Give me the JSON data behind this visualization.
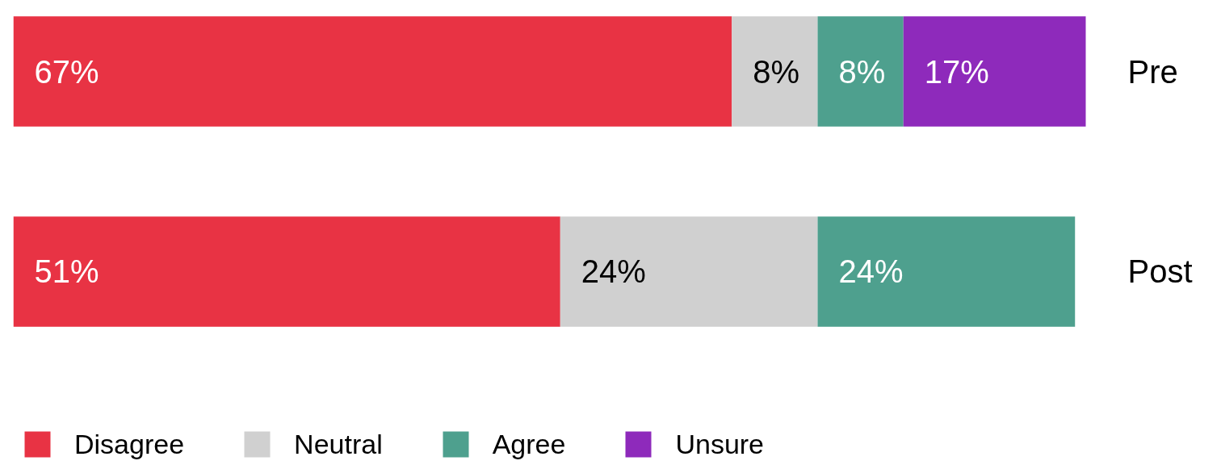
{
  "chart_data": {
    "type": "bar",
    "orientation": "horizontal",
    "stacked": true,
    "categories": [
      "Pre",
      "Post"
    ],
    "series": [
      {
        "name": "Disagree",
        "color": "#e83344",
        "values": [
          67,
          51
        ],
        "value_labels": [
          "67%",
          "51%"
        ]
      },
      {
        "name": "Neutral",
        "color": "#d0d0d0",
        "values": [
          8,
          24
        ],
        "value_labels": [
          "8%",
          "24%"
        ]
      },
      {
        "name": "Agree",
        "color": "#4ea08e",
        "values": [
          8,
          24
        ],
        "value_labels": [
          "8%",
          "24%"
        ]
      },
      {
        "name": "Unsure",
        "color": "#8e2abb",
        "values": [
          17,
          null
        ],
        "value_labels": [
          "17%",
          null
        ]
      }
    ],
    "legend": "bottom",
    "tick_labels": "y",
    "grid": false
  }
}
